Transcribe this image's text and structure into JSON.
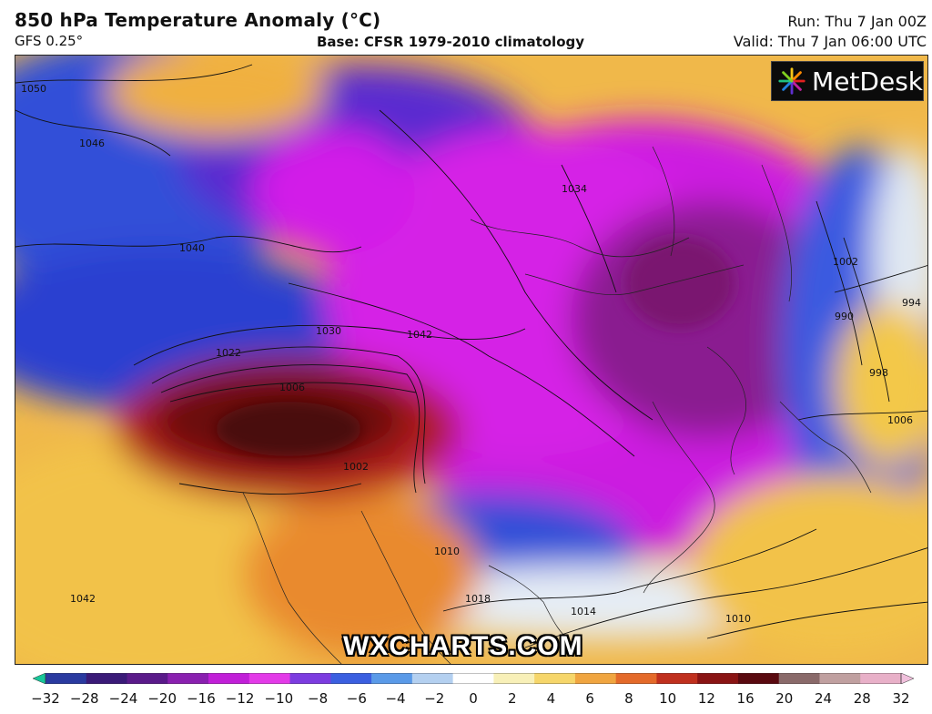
{
  "header": {
    "title": "850 hPa Temperature Anomaly (°C)",
    "model": "GFS 0.25°",
    "base": "Base: CFSR 1979-2010 climatology",
    "run": "Run: Thu 7 Jan 00Z",
    "valid": "Valid: Thu 7 Jan 06:00 UTC"
  },
  "logo": {
    "text": "MetDesk",
    "icon": "metdesk-burst-icon"
  },
  "watermark": "WXCHARTS.COM",
  "map": {
    "isobar_labels": [
      "1050",
      "1046",
      "1040",
      "1030",
      "1022",
      "1006",
      "1002",
      "1034",
      "1042",
      "1018",
      "1014",
      "1010",
      "1002",
      "994",
      "990",
      "998",
      "1006",
      "1042",
      "1010"
    ],
    "colors": {
      "cold_magenta": "#d21ee8",
      "cold_purple": "#6a1fd0",
      "cool_blue": "#2f4fe0",
      "near_zero": "#e6edf5",
      "warm_yellow": "#f3c84a",
      "warm_orange": "#e98a2e",
      "hot_red": "#a8161a",
      "hot_dark": "#5a0a0e"
    }
  },
  "colorbar": {
    "ticks": [
      "−32",
      "−28",
      "−24",
      "−20",
      "−16",
      "−12",
      "−10",
      "−8",
      "−6",
      "−4",
      "−2",
      "0",
      "2",
      "4",
      "6",
      "8",
      "10",
      "12",
      "16",
      "20",
      "24",
      "28",
      "32"
    ],
    "colors": [
      "#18c79a",
      "#2a3aa0",
      "#3a1a78",
      "#5a1a8a",
      "#8a20b0",
      "#c11fd8",
      "#e33ae8",
      "#7c3ce0",
      "#3b5fe0",
      "#5a9ae8",
      "#b4d0f0",
      "#ffffff",
      "#f8f0b8",
      "#f6d66a",
      "#f0a540",
      "#e46a2a",
      "#c0301e",
      "#8a1414",
      "#5a0a10",
      "#8a6a6a",
      "#c0a0a0",
      "#e8b0c8",
      "#f0c0dc"
    ]
  }
}
